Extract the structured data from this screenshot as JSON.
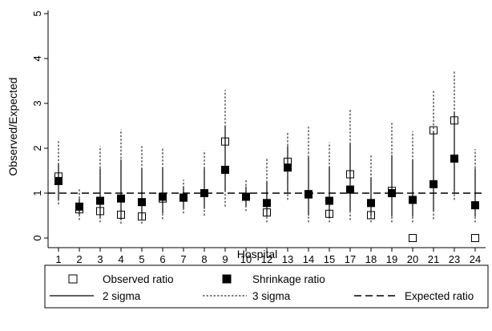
{
  "chart_data": {
    "type": "scatter",
    "title": "",
    "xlabel": "Hospital",
    "ylabel": "Observed/Expected",
    "categories": [
      "1",
      "2",
      "3",
      "4",
      "5",
      "6",
      "7",
      "8",
      "9",
      "10",
      "12",
      "13",
      "14",
      "15",
      "17",
      "18",
      "19",
      "20",
      "21",
      "23",
      "24"
    ],
    "ylim": [
      0,
      5
    ],
    "yticks": [
      0,
      1,
      2,
      3,
      4,
      5
    ],
    "expected_ratio": 1,
    "grid": false,
    "series": [
      {
        "name": "Observed ratio",
        "marker": "hollow-square",
        "values": [
          1.37,
          0.64,
          0.6,
          0.52,
          0.48,
          0.88,
          0.9,
          1.0,
          2.15,
          0.92,
          0.57,
          1.7,
          0.98,
          0.54,
          1.42,
          0.51,
          1.05,
          0.0,
          2.4,
          2.62,
          0.0
        ]
      },
      {
        "name": "Shrinkage ratio",
        "marker": "filled-square",
        "values": [
          1.27,
          0.7,
          0.83,
          0.88,
          0.8,
          0.92,
          0.9,
          1.0,
          1.52,
          0.92,
          0.78,
          1.57,
          0.97,
          0.83,
          1.08,
          0.78,
          1.0,
          0.85,
          1.2,
          1.77,
          0.73
        ]
      }
    ],
    "intervals": {
      "two_sigma": [
        [
          0.85,
          1.65
        ],
        [
          0.52,
          0.88
        ],
        [
          0.45,
          1.55
        ],
        [
          0.4,
          1.75
        ],
        [
          0.42,
          1.55
        ],
        [
          0.55,
          1.55
        ],
        [
          0.65,
          1.15
        ],
        [
          0.65,
          1.55
        ],
        [
          1.05,
          2.5
        ],
        [
          0.7,
          1.15
        ],
        [
          0.48,
          1.25
        ],
        [
          1.05,
          2.05
        ],
        [
          0.5,
          1.8
        ],
        [
          0.45,
          1.6
        ],
        [
          0.6,
          2.1
        ],
        [
          0.48,
          1.35
        ],
        [
          0.48,
          1.85
        ],
        [
          0.48,
          1.75
        ],
        [
          0.6,
          2.35
        ],
        [
          1.05,
          2.8
        ],
        [
          0.48,
          1.55
        ]
      ],
      "three_sigma": [
        [
          0.75,
          2.2
        ],
        [
          0.4,
          1.1
        ],
        [
          0.35,
          2.05
        ],
        [
          0.32,
          2.42
        ],
        [
          0.32,
          2.05
        ],
        [
          0.42,
          2.0
        ],
        [
          0.55,
          1.3
        ],
        [
          0.5,
          1.95
        ],
        [
          0.7,
          3.3
        ],
        [
          0.6,
          1.32
        ],
        [
          0.35,
          1.8
        ],
        [
          0.85,
          2.38
        ],
        [
          0.35,
          2.48
        ],
        [
          0.35,
          2.13
        ],
        [
          0.4,
          2.88
        ],
        [
          0.35,
          1.88
        ],
        [
          0.35,
          2.58
        ],
        [
          0.35,
          2.38
        ],
        [
          0.42,
          3.28
        ],
        [
          0.85,
          3.73
        ],
        [
          0.35,
          1.98
        ]
      ]
    },
    "legend": {
      "position": "bottom",
      "entries": [
        {
          "label": "Observed ratio",
          "kind": "hollow-square"
        },
        {
          "label": "Shrinkage ratio",
          "kind": "filled-square"
        },
        {
          "label": "2 sigma",
          "kind": "solid-line"
        },
        {
          "label": "3 sigma",
          "kind": "dotted-line"
        },
        {
          "label": "Expected ratio",
          "kind": "dashed-line"
        }
      ]
    }
  }
}
